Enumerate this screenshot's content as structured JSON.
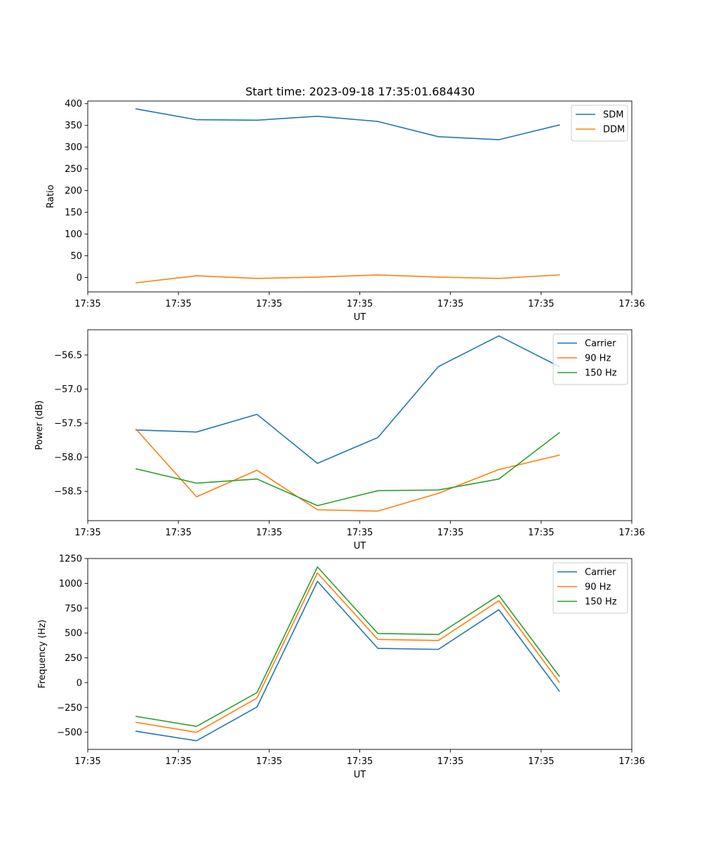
{
  "chart_data": [
    {
      "type": "line",
      "title": "Start time: 2023-09-18 17:35:01.684430",
      "xlabel": "UT",
      "ylabel": "Ratio",
      "x": [
        1,
        2,
        3,
        4,
        5,
        6,
        7,
        8
      ],
      "xlim": [
        0.2,
        9.2
      ],
      "xticks": [
        0.2,
        1.7,
        3.2,
        4.7,
        6.2,
        7.7,
        9.2
      ],
      "xtick_labels": [
        "17:35",
        "17:35",
        "17:35",
        "17:35",
        "17:35",
        "17:35",
        "17:36"
      ],
      "ylim": [
        -33,
        406
      ],
      "yticks": [
        0,
        50,
        100,
        150,
        200,
        250,
        300,
        350,
        400
      ],
      "legend_position": "upper-right",
      "series": [
        {
          "name": "SDM",
          "color": "#1f77b4",
          "values": [
            388,
            363,
            362,
            371,
            359,
            324,
            317,
            351
          ]
        },
        {
          "name": "DDM",
          "color": "#ff7f0e",
          "values": [
            -12,
            4,
            -2,
            1,
            6,
            1,
            -2,
            6
          ]
        }
      ]
    },
    {
      "type": "line",
      "title": "",
      "xlabel": "UT",
      "ylabel": "Power (dB)",
      "x": [
        1,
        2,
        3,
        4,
        5,
        6,
        7,
        8
      ],
      "xlim": [
        0.2,
        9.2
      ],
      "xticks": [
        0.2,
        1.7,
        3.2,
        4.7,
        6.2,
        7.7,
        9.2
      ],
      "xtick_labels": [
        "17:35",
        "17:35",
        "17:35",
        "17:35",
        "17:35",
        "17:35",
        "17:36"
      ],
      "ylim": [
        -58.93,
        -56.13
      ],
      "yticks": [
        -58.5,
        -58.0,
        -57.5,
        -57.0,
        -56.5
      ],
      "ytick_labels": [
        "−58.5",
        "−58.0",
        "−57.5",
        "−57.0",
        "−56.5"
      ],
      "legend_position": "upper-right",
      "series": [
        {
          "name": "Carrier",
          "color": "#1f77b4",
          "values": [
            -57.6,
            -57.63,
            -57.37,
            -58.09,
            -57.71,
            -56.67,
            -56.22,
            -56.67
          ]
        },
        {
          "name": "90 Hz",
          "color": "#ff7f0e",
          "values": [
            -57.59,
            -58.58,
            -58.19,
            -58.77,
            -58.79,
            -58.53,
            -58.18,
            -57.97
          ]
        },
        {
          "name": "150 Hz",
          "color": "#2ca02c",
          "values": [
            -58.17,
            -58.38,
            -58.32,
            -58.71,
            -58.49,
            -58.48,
            -58.32,
            -57.64
          ]
        }
      ]
    },
    {
      "type": "line",
      "title": "",
      "xlabel": "UT",
      "ylabel": "Frequency (Hz)",
      "x": [
        1,
        2,
        3,
        4,
        5,
        6,
        7,
        8
      ],
      "xlim": [
        0.2,
        9.2
      ],
      "xticks": [
        0.2,
        1.7,
        3.2,
        4.7,
        6.2,
        7.7,
        9.2
      ],
      "xtick_labels": [
        "17:35",
        "17:35",
        "17:35",
        "17:35",
        "17:35",
        "17:35",
        "17:36"
      ],
      "ylim": [
        -672,
        1250
      ],
      "yticks": [
        -500,
        -250,
        0,
        250,
        500,
        750,
        1000,
        1250
      ],
      "ytick_labels": [
        "−500",
        "−250",
        "0",
        "250",
        "500",
        "750",
        "1000",
        "1250"
      ],
      "legend_position": "upper-right",
      "series": [
        {
          "name": "Carrier",
          "color": "#1f77b4",
          "values": [
            -490,
            -585,
            -245,
            1020,
            345,
            335,
            735,
            -85
          ]
        },
        {
          "name": "90 Hz",
          "color": "#ff7f0e",
          "values": [
            -400,
            -500,
            -155,
            1105,
            435,
            425,
            825,
            5
          ]
        },
        {
          "name": "150 Hz",
          "color": "#2ca02c",
          "values": [
            -340,
            -440,
            -100,
            1165,
            495,
            485,
            880,
            65
          ]
        }
      ]
    }
  ]
}
